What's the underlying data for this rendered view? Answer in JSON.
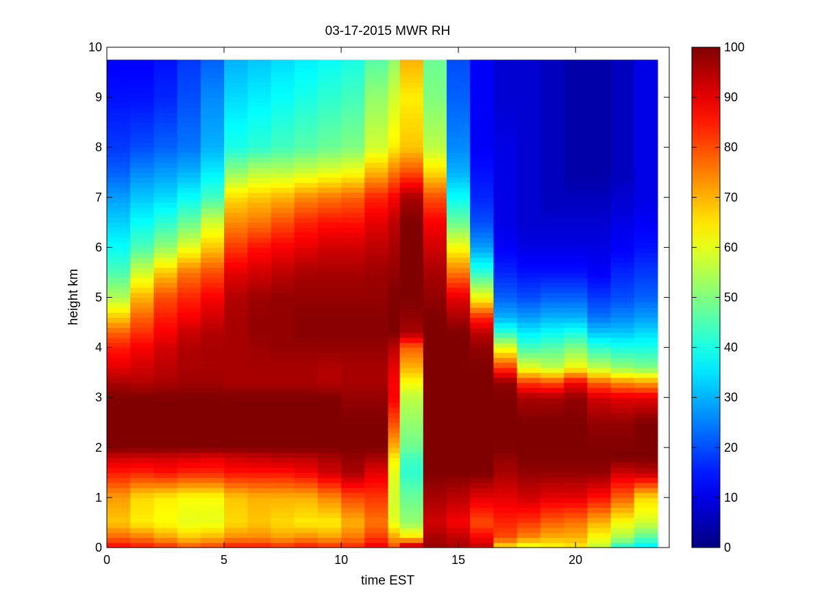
{
  "chart_data": {
    "type": "heatmap",
    "title": "03-17-2015 MWR RH",
    "xlabel": "time EST",
    "ylabel": "height km",
    "xlim": [
      0,
      24
    ],
    "ylim": [
      0,
      10
    ],
    "x_ticks": [
      0,
      5,
      10,
      15,
      20
    ],
    "y_ticks": [
      0,
      1,
      2,
      3,
      4,
      5,
      6,
      7,
      8,
      9,
      10
    ],
    "colorbar": {
      "colormap": "jet",
      "range": [
        0,
        100
      ],
      "ticks": [
        0,
        10,
        20,
        30,
        40,
        50,
        60,
        70,
        80,
        90,
        100
      ]
    },
    "time_bins": [
      0,
      1,
      2,
      3,
      4,
      5,
      6,
      7,
      8,
      9,
      10,
      11,
      12,
      12.5,
      13.5,
      14.5,
      15.5,
      16.5,
      17.5,
      18.5,
      19.5,
      20.5,
      21.5,
      22.5,
      23.5
    ],
    "time_bins_note_excluded": true,
    "height_knots": [
      0.0,
      0.2,
      0.5,
      1.0,
      1.5,
      1.8,
      2.0,
      2.5,
      3.0,
      3.3,
      3.6,
      4.0,
      4.3,
      4.6,
      5.0,
      5.5,
      6.0,
      6.5,
      7.0,
      7.5,
      8.0,
      9.0,
      9.75
    ],
    "rh_columns": [
      [
        88,
        78,
        68,
        72,
        85,
        92,
        100,
        100,
        100,
        96,
        90,
        85,
        78,
        68,
        55,
        45,
        38,
        33,
        28,
        22,
        18,
        14,
        12
      ],
      [
        86,
        76,
        64,
        66,
        84,
        92,
        100,
        100,
        100,
        95,
        92,
        88,
        83,
        78,
        70,
        58,
        45,
        38,
        32,
        26,
        20,
        14,
        12
      ],
      [
        84,
        72,
        62,
        64,
        86,
        92,
        100,
        100,
        100,
        96,
        94,
        92,
        88,
        85,
        80,
        68,
        52,
        42,
        34,
        28,
        22,
        16,
        14
      ],
      [
        80,
        68,
        60,
        62,
        84,
        91,
        100,
        100,
        100,
        97,
        96,
        95,
        93,
        88,
        84,
        76,
        60,
        48,
        38,
        30,
        24,
        20,
        18
      ],
      [
        82,
        70,
        60,
        62,
        84,
        90,
        100,
        100,
        100,
        97,
        96,
        96,
        95,
        92,
        88,
        80,
        68,
        58,
        44,
        36,
        30,
        26,
        22
      ],
      [
        86,
        74,
        66,
        68,
        86,
        92,
        100,
        100,
        100,
        96,
        96,
        96,
        96,
        96,
        95,
        90,
        82,
        74,
        66,
        52,
        40,
        34,
        30
      ],
      [
        86,
        74,
        68,
        70,
        86,
        93,
        100,
        100,
        100,
        96,
        96,
        97,
        98,
        98,
        97,
        92,
        86,
        76,
        68,
        56,
        42,
        36,
        32
      ],
      [
        84,
        72,
        66,
        70,
        86,
        94,
        100,
        100,
        100,
        96,
        96,
        98,
        98,
        98,
        98,
        94,
        88,
        80,
        70,
        56,
        44,
        38,
        34
      ],
      [
        86,
        74,
        64,
        70,
        88,
        94,
        100,
        100,
        100,
        96,
        96,
        98,
        99,
        99,
        98,
        96,
        90,
        84,
        74,
        58,
        46,
        40,
        36
      ],
      [
        84,
        72,
        64,
        74,
        92,
        96,
        100,
        100,
        100,
        95,
        95,
        98,
        99,
        99,
        98,
        96,
        92,
        86,
        76,
        60,
        48,
        42,
        38
      ],
      [
        84,
        76,
        70,
        80,
        96,
        98,
        100,
        100,
        98,
        96,
        96,
        98,
        99,
        99,
        98,
        96,
        92,
        86,
        78,
        62,
        50,
        44,
        40
      ],
      [
        90,
        82,
        76,
        82,
        90,
        96,
        100,
        100,
        98,
        96,
        96,
        98,
        99,
        99,
        98,
        97,
        94,
        90,
        84,
        70,
        58,
        52,
        46
      ],
      [
        80,
        72,
        60,
        58,
        60,
        64,
        70,
        80,
        88,
        88,
        90,
        94,
        100,
        100,
        100,
        98,
        96,
        94,
        88,
        76,
        64,
        58,
        52
      ],
      [
        98,
        66,
        52,
        48,
        42,
        44,
        48,
        52,
        56,
        62,
        70,
        78,
        96,
        98,
        100,
        100,
        100,
        100,
        96,
        80,
        68,
        64,
        70
      ],
      [
        98,
        96,
        92,
        96,
        100,
        100,
        100,
        100,
        100,
        100,
        100,
        100,
        100,
        100,
        98,
        96,
        92,
        88,
        80,
        66,
        56,
        50,
        48
      ],
      [
        96,
        94,
        88,
        94,
        100,
        100,
        100,
        100,
        100,
        100,
        100,
        100,
        100,
        96,
        90,
        76,
        62,
        48,
        38,
        30,
        26,
        22,
        20
      ],
      [
        94,
        88,
        80,
        90,
        100,
        100,
        100,
        100,
        100,
        100,
        100,
        98,
        94,
        84,
        62,
        42,
        28,
        20,
        16,
        14,
        12,
        12,
        12
      ],
      [
        64,
        80,
        84,
        90,
        96,
        98,
        100,
        100,
        100,
        98,
        82,
        60,
        42,
        30,
        22,
        16,
        12,
        10,
        10,
        10,
        10,
        8,
        8
      ],
      [
        58,
        74,
        82,
        92,
        98,
        100,
        100,
        100,
        96,
        82,
        60,
        44,
        36,
        28,
        20,
        14,
        10,
        8,
        8,
        8,
        8,
        8,
        8
      ],
      [
        62,
        70,
        78,
        90,
        98,
        100,
        100,
        100,
        96,
        80,
        56,
        46,
        38,
        30,
        22,
        14,
        10,
        8,
        6,
        6,
        6,
        6,
        6
      ],
      [
        64,
        70,
        76,
        90,
        98,
        100,
        100,
        100,
        98,
        88,
        62,
        50,
        40,
        30,
        22,
        14,
        10,
        8,
        6,
        4,
        4,
        4,
        4
      ],
      [
        56,
        62,
        70,
        86,
        98,
        100,
        100,
        98,
        92,
        78,
        56,
        42,
        32,
        24,
        18,
        12,
        10,
        8,
        6,
        4,
        4,
        4,
        4
      ],
      [
        40,
        54,
        62,
        78,
        92,
        100,
        100,
        98,
        90,
        74,
        52,
        40,
        32,
        26,
        20,
        16,
        12,
        10,
        8,
        6,
        6,
        6,
        6
      ],
      [
        34,
        46,
        58,
        66,
        94,
        100,
        100,
        100,
        90,
        72,
        50,
        40,
        34,
        28,
        22,
        18,
        14,
        12,
        10,
        10,
        10,
        10,
        10
      ]
    ]
  }
}
